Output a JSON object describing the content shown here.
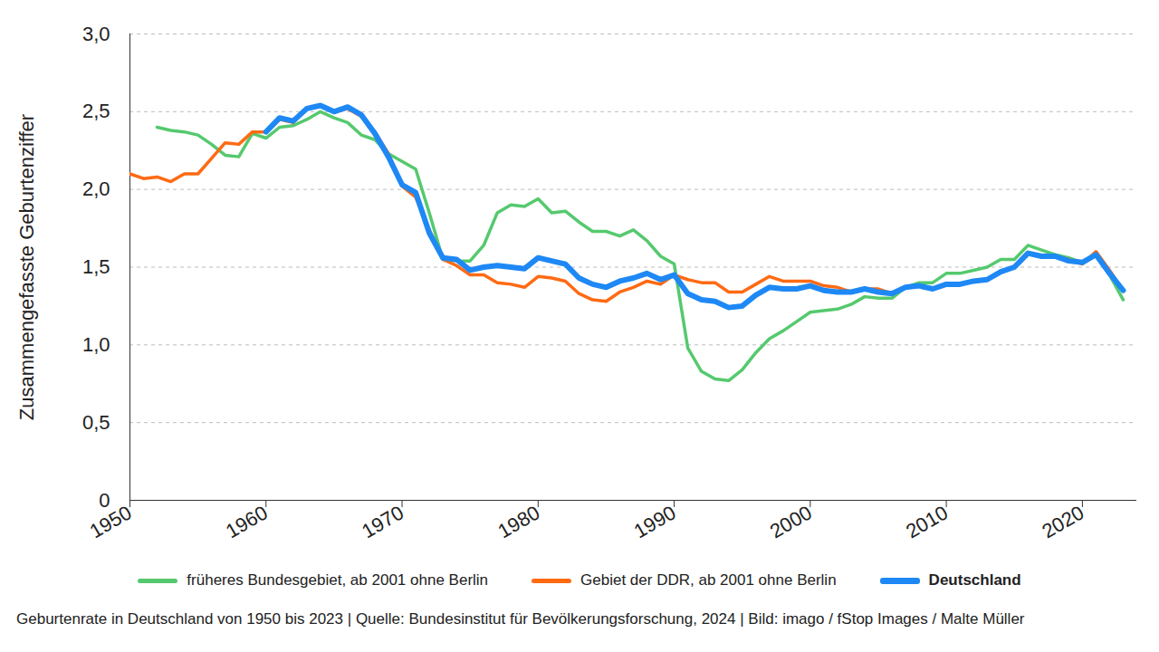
{
  "chart_data": {
    "type": "line",
    "y_label": "Zusammengefasste Geburtenziffer",
    "caption": "Geburtenrate in Deutschland von 1950 bis 2023 | Quelle: Bundesinstitut für Bevölkerungsforschung, 2024 | Bild: imago / fStop Images / Malte Müller",
    "x": [
      1950,
      1951,
      1952,
      1953,
      1954,
      1955,
      1956,
      1957,
      1958,
      1959,
      1960,
      1961,
      1962,
      1963,
      1964,
      1965,
      1966,
      1967,
      1968,
      1969,
      1970,
      1971,
      1972,
      1973,
      1974,
      1975,
      1976,
      1977,
      1978,
      1979,
      1980,
      1981,
      1982,
      1983,
      1984,
      1985,
      1986,
      1987,
      1988,
      1989,
      1990,
      1991,
      1992,
      1993,
      1994,
      1995,
      1996,
      1997,
      1998,
      1999,
      2000,
      2001,
      2002,
      2003,
      2004,
      2005,
      2006,
      2007,
      2008,
      2009,
      2010,
      2011,
      2012,
      2013,
      2014,
      2015,
      2016,
      2017,
      2018,
      2019,
      2020,
      2021,
      2022,
      2023
    ],
    "series": [
      {
        "name": "früheres Bundesgebiet, ab 2001 ohne Berlin",
        "color": "#55c96e",
        "values": [
          null,
          null,
          2.4,
          2.38,
          2.37,
          2.35,
          2.29,
          2.22,
          2.21,
          2.36,
          2.33,
          2.4,
          2.41,
          2.45,
          2.5,
          2.46,
          2.43,
          2.35,
          2.32,
          2.23,
          2.18,
          2.13,
          1.85,
          1.55,
          1.54,
          1.54,
          1.64,
          1.85,
          1.9,
          1.89,
          1.94,
          1.85,
          1.86,
          1.79,
          1.73,
          1.73,
          1.7,
          1.74,
          1.67,
          1.57,
          1.52,
          0.98,
          0.83,
          0.78,
          0.77,
          0.84,
          0.95,
          1.04,
          1.09,
          1.15,
          1.21,
          1.22,
          1.23,
          1.26,
          1.31,
          1.3,
          1.3,
          1.37,
          1.4,
          1.4,
          1.46,
          1.46,
          1.48,
          1.5,
          1.55,
          1.55,
          1.64,
          1.61,
          1.58,
          1.56,
          1.53,
          1.59,
          1.45,
          1.29
        ]
      },
      {
        "name": "Gebiet der DDR, ab 2001 ohne Berlin",
        "color": "#ff6a13",
        "values": [
          2.1,
          2.07,
          2.08,
          2.05,
          2.1,
          2.1,
          2.2,
          2.3,
          2.29,
          2.37,
          2.37,
          2.45,
          2.43,
          2.52,
          2.54,
          2.5,
          2.52,
          2.47,
          2.37,
          2.23,
          2.02,
          1.95,
          1.74,
          1.55,
          1.51,
          1.45,
          1.45,
          1.4,
          1.39,
          1.37,
          1.44,
          1.43,
          1.41,
          1.33,
          1.29,
          1.28,
          1.34,
          1.37,
          1.41,
          1.39,
          1.45,
          1.42,
          1.4,
          1.4,
          1.34,
          1.34,
          1.39,
          1.44,
          1.41,
          1.41,
          1.41,
          1.38,
          1.37,
          1.34,
          1.36,
          1.36,
          1.33,
          1.37,
          1.38,
          1.36,
          1.39,
          1.39,
          1.41,
          1.42,
          1.47,
          1.5,
          1.59,
          1.57,
          1.57,
          1.55,
          1.52,
          1.6,
          1.48,
          1.35
        ]
      },
      {
        "name": "Deutschland",
        "color": "#1e88f5",
        "values": [
          null,
          null,
          null,
          null,
          null,
          null,
          null,
          null,
          null,
          null,
          2.37,
          2.46,
          2.44,
          2.52,
          2.54,
          2.5,
          2.53,
          2.48,
          2.36,
          2.21,
          2.03,
          1.98,
          1.72,
          1.56,
          1.55,
          1.48,
          1.5,
          1.51,
          1.5,
          1.49,
          1.56,
          1.54,
          1.52,
          1.43,
          1.39,
          1.37,
          1.41,
          1.43,
          1.46,
          1.42,
          1.45,
          1.33,
          1.29,
          1.28,
          1.24,
          1.25,
          1.32,
          1.37,
          1.36,
          1.36,
          1.38,
          1.35,
          1.34,
          1.34,
          1.36,
          1.34,
          1.33,
          1.37,
          1.38,
          1.36,
          1.39,
          1.39,
          1.41,
          1.42,
          1.47,
          1.5,
          1.59,
          1.57,
          1.57,
          1.54,
          1.53,
          1.58,
          1.46,
          1.35
        ]
      }
    ],
    "xlim": [
      1950,
      2024
    ],
    "xticks": [
      1950,
      1960,
      1970,
      1980,
      1990,
      2000,
      2010,
      2020
    ],
    "ylim": [
      0,
      3.0
    ],
    "yticks": [
      0,
      {
        "value": 0.5,
        "label": "0,5"
      },
      {
        "value": 1.0,
        "label": "1,0"
      },
      {
        "value": 1.5,
        "label": "1,5"
      },
      {
        "value": 2.0,
        "label": "2,0"
      },
      {
        "value": 2.5,
        "label": "2,5"
      },
      {
        "value": 3.0,
        "label": "3,0"
      }
    ],
    "grid": true,
    "legend": "bottom"
  }
}
